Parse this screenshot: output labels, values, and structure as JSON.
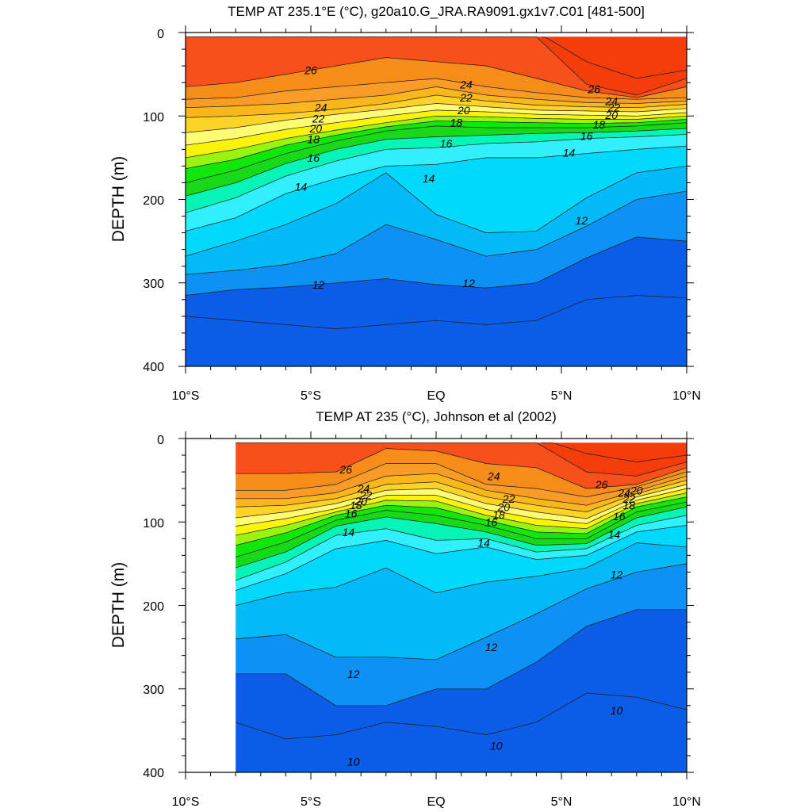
{
  "chart_data": [
    {
      "type": "heatmap",
      "title": "TEMP AT 235.1°E (°C), g20a10.G_JRA.RA9091.gx1v7.C01 [481-500]",
      "xlabel": "",
      "ylabel": "DEPTH (m)",
      "x_ticks": [
        "10°S",
        "5°S",
        "EQ",
        "5°N",
        "10°N"
      ],
      "x_values": [
        -10,
        -5,
        0,
        5,
        10
      ],
      "y_ticks": [
        "0",
        "100",
        "200",
        "300",
        "400"
      ],
      "y_values": [
        0,
        100,
        200,
        300,
        400
      ],
      "xlim": [
        -10,
        10
      ],
      "ylim": [
        400,
        0
      ],
      "data_xlim": [
        -10,
        10
      ],
      "data_ylim": [
        5,
        400
      ],
      "contour_levels": [
        10,
        11,
        12,
        13,
        14,
        15,
        16,
        17,
        18,
        19,
        20,
        21,
        22,
        23,
        24,
        25,
        26,
        27
      ],
      "contour_labels": [
        {
          "text": "26",
          "lat": -5.0,
          "depth": 45
        },
        {
          "text": "24",
          "lat": -4.6,
          "depth": 90
        },
        {
          "text": "22",
          "lat": -4.7,
          "depth": 103
        },
        {
          "text": "20",
          "lat": -4.8,
          "depth": 115
        },
        {
          "text": "18",
          "lat": -4.9,
          "depth": 128
        },
        {
          "text": "16",
          "lat": -4.9,
          "depth": 150
        },
        {
          "text": "14",
          "lat": -5.4,
          "depth": 185
        },
        {
          "text": "12",
          "lat": -4.7,
          "depth": 302
        },
        {
          "text": "24",
          "lat": 1.2,
          "depth": 62
        },
        {
          "text": "22",
          "lat": 1.2,
          "depth": 78
        },
        {
          "text": "20",
          "lat": 1.1,
          "depth": 93
        },
        {
          "text": "18",
          "lat": 0.8,
          "depth": 108
        },
        {
          "text": "16",
          "lat": 0.4,
          "depth": 133
        },
        {
          "text": "14",
          "lat": -0.3,
          "depth": 175
        },
        {
          "text": "12",
          "lat": 1.3,
          "depth": 300
        },
        {
          "text": "26",
          "lat": 6.3,
          "depth": 68
        },
        {
          "text": "24",
          "lat": 7.0,
          "depth": 82
        },
        {
          "text": "22",
          "lat": 7.1,
          "depth": 90
        },
        {
          "text": "20",
          "lat": 7.0,
          "depth": 99
        },
        {
          "text": "18",
          "lat": 6.5,
          "depth": 110
        },
        {
          "text": "16",
          "lat": 6.0,
          "depth": 124
        },
        {
          "text": "14",
          "lat": 5.3,
          "depth": 144
        },
        {
          "text": "12",
          "lat": 5.8,
          "depth": 225
        }
      ],
      "fill_colors": [
        "#0b5ce6",
        "#0e91f4",
        "#03baf9",
        "#00d8fc",
        "#2ff0fb",
        "#06f4b6",
        "#17d918",
        "#10e80b",
        "#98f411",
        "#fbf30a",
        "#fffc73",
        "#fdd327",
        "#fab71b",
        "#f99c27",
        "#f68c1a",
        "#f7501b",
        "#f53c0b"
      ]
    },
    {
      "type": "heatmap",
      "title": "TEMP AT 235 (°C), Johnson et al (2002)",
      "xlabel": "",
      "ylabel": "DEPTH (m)",
      "x_ticks": [
        "10°S",
        "5°S",
        "EQ",
        "5°N",
        "10°N"
      ],
      "x_values": [
        -10,
        -5,
        0,
        5,
        10
      ],
      "y_ticks": [
        "0",
        "100",
        "200",
        "300",
        "400"
      ],
      "y_values": [
        0,
        100,
        200,
        300,
        400
      ],
      "xlim": [
        -10,
        10
      ],
      "ylim": [
        400,
        0
      ],
      "data_xlim": [
        -8,
        10
      ],
      "data_ylim": [
        5,
        400
      ],
      "contour_levels": [
        10,
        11,
        12,
        13,
        14,
        15,
        16,
        17,
        18,
        19,
        20,
        21,
        22,
        23,
        24,
        25,
        26,
        27
      ],
      "contour_labels": [
        {
          "text": "26",
          "lat": -3.6,
          "depth": 37
        },
        {
          "text": "24",
          "lat": -2.9,
          "depth": 60
        },
        {
          "text": "22",
          "lat": -2.8,
          "depth": 68
        },
        {
          "text": "20",
          "lat": -3.0,
          "depth": 75
        },
        {
          "text": "18",
          "lat": -3.2,
          "depth": 80
        },
        {
          "text": "16",
          "lat": -3.4,
          "depth": 90
        },
        {
          "text": "14",
          "lat": -3.5,
          "depth": 112
        },
        {
          "text": "12",
          "lat": -3.3,
          "depth": 282
        },
        {
          "text": "10",
          "lat": -3.3,
          "depth": 387
        },
        {
          "text": "24",
          "lat": 2.3,
          "depth": 45
        },
        {
          "text": "22",
          "lat": 2.9,
          "depth": 72
        },
        {
          "text": "20",
          "lat": 2.7,
          "depth": 82
        },
        {
          "text": "18",
          "lat": 2.5,
          "depth": 91
        },
        {
          "text": "16",
          "lat": 2.2,
          "depth": 100
        },
        {
          "text": "14",
          "lat": 1.9,
          "depth": 125
        },
        {
          "text": "12",
          "lat": 2.2,
          "depth": 250
        },
        {
          "text": "10",
          "lat": 2.4,
          "depth": 368
        },
        {
          "text": "26",
          "lat": 6.6,
          "depth": 55
        },
        {
          "text": "24",
          "lat": 7.5,
          "depth": 65
        },
        {
          "text": "22",
          "lat": 7.7,
          "depth": 72
        },
        {
          "text": "20",
          "lat": 8.0,
          "depth": 62
        },
        {
          "text": "18",
          "lat": 7.7,
          "depth": 80
        },
        {
          "text": "16",
          "lat": 7.3,
          "depth": 93
        },
        {
          "text": "14",
          "lat": 7.1,
          "depth": 115
        },
        {
          "text": "12",
          "lat": 7.2,
          "depth": 163
        },
        {
          "text": "10",
          "lat": 7.2,
          "depth": 326
        }
      ],
      "fill_colors": [
        "#0b5ce6",
        "#0e91f4",
        "#03baf9",
        "#00d8fc",
        "#2ff0fb",
        "#06f4b6",
        "#17d918",
        "#10e80b",
        "#98f411",
        "#fbf30a",
        "#fffc73",
        "#fdd327",
        "#fab71b",
        "#f99c27",
        "#f68c1a",
        "#f7501b",
        "#f53c0b"
      ]
    }
  ]
}
